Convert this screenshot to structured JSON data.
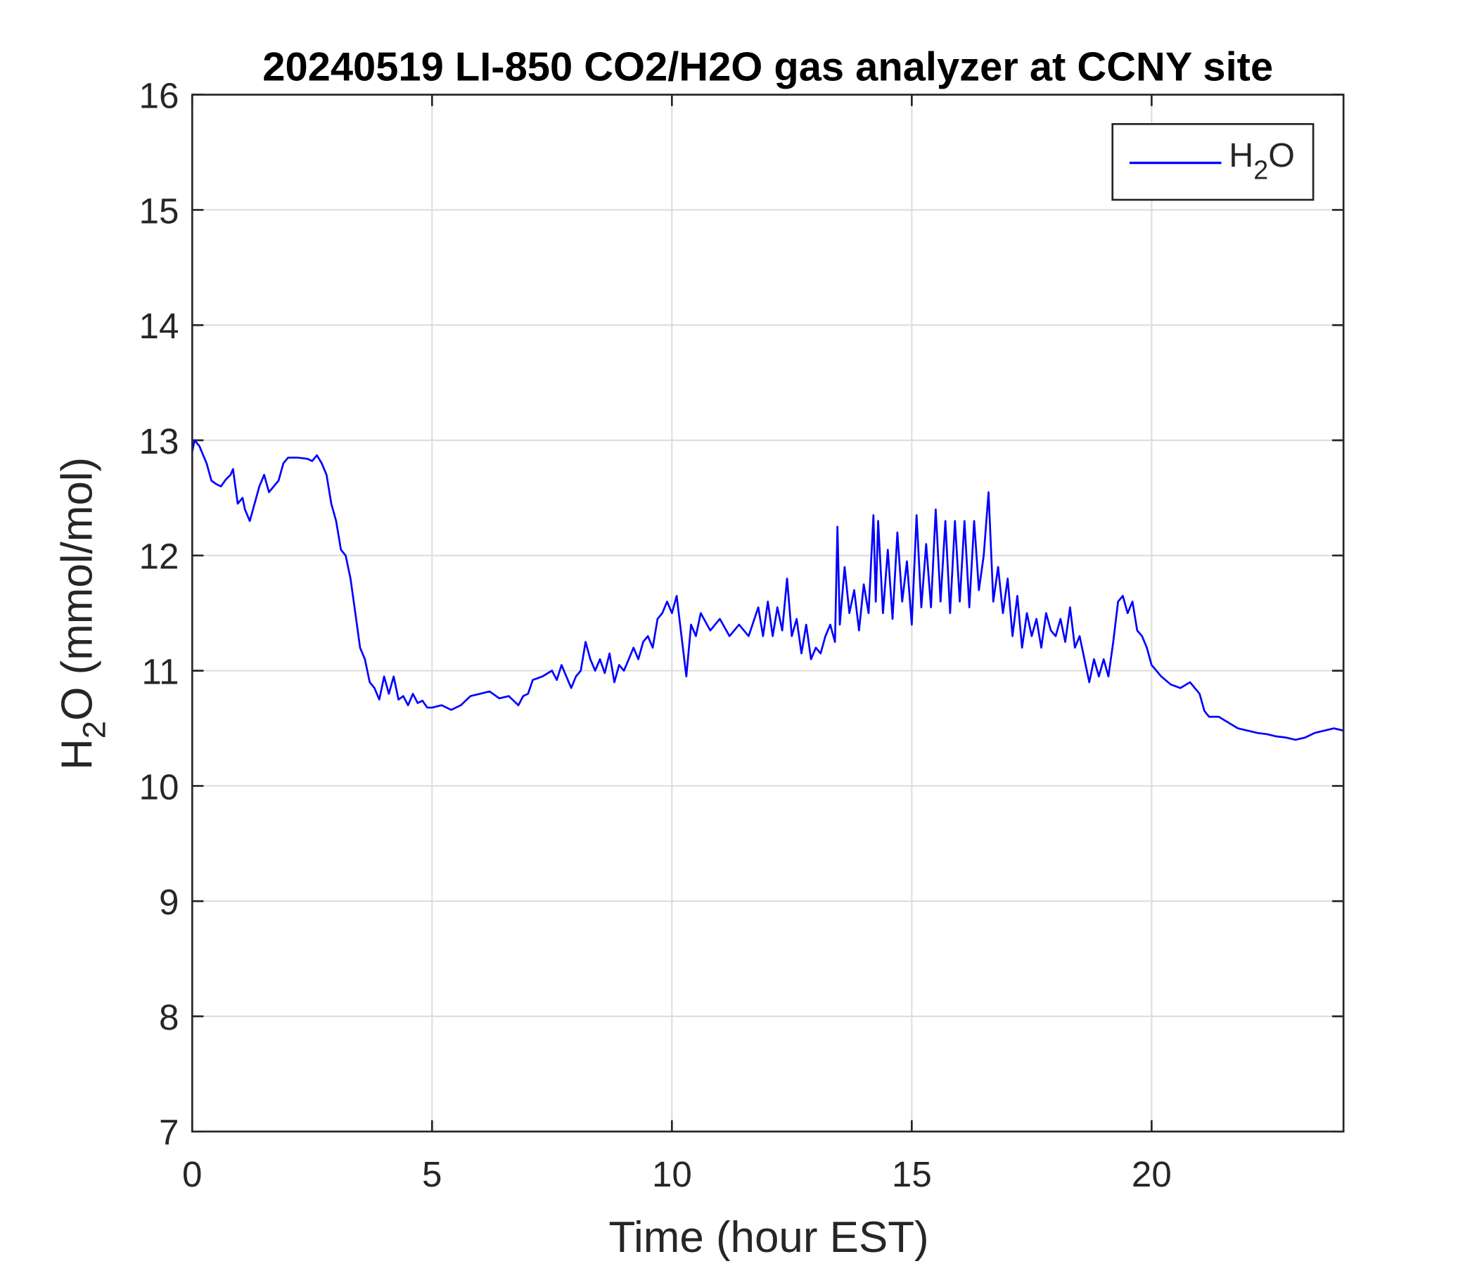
{
  "chart_data": {
    "type": "line",
    "title": "20240519 LI-850 CO2/H2O gas analyzer at CCNY site",
    "xlabel": "Time (hour EST)",
    "ylabel_parts": [
      "H",
      "2",
      "O (mmol/mol)"
    ],
    "xlim": [
      0,
      24
    ],
    "ylim": [
      7,
      16
    ],
    "xticks": [
      0,
      5,
      10,
      15,
      20
    ],
    "yticks": [
      7,
      8,
      9,
      10,
      11,
      12,
      13,
      14,
      15,
      16
    ],
    "grid": true,
    "legend": {
      "placement": "top-right",
      "entries": [
        {
          "parts": [
            "H",
            "2",
            "O"
          ],
          "color": "#0000FF"
        }
      ]
    },
    "series": [
      {
        "name": "H2O",
        "color": "#0000FF",
        "x": [
          0,
          0.05,
          0.15,
          0.3,
          0.4,
          0.5,
          0.6,
          0.7,
          0.8,
          0.85,
          0.9,
          0.95,
          1.05,
          1.1,
          1.2,
          1.3,
          1.4,
          1.5,
          1.6,
          1.7,
          1.8,
          1.9,
          2.0,
          2.2,
          2.4,
          2.5,
          2.6,
          2.7,
          2.8,
          2.9,
          3.0,
          3.1,
          3.2,
          3.3,
          3.4,
          3.5,
          3.6,
          3.7,
          3.8,
          3.9,
          4.0,
          4.1,
          4.2,
          4.3,
          4.4,
          4.5,
          4.6,
          4.7,
          4.8,
          4.9,
          5.0,
          5.2,
          5.4,
          5.6,
          5.8,
          6.0,
          6.2,
          6.4,
          6.6,
          6.8,
          6.9,
          7.0,
          7.1,
          7.3,
          7.5,
          7.6,
          7.7,
          7.8,
          7.9,
          8.0,
          8.1,
          8.2,
          8.3,
          8.4,
          8.5,
          8.6,
          8.7,
          8.8,
          8.9,
          9.0,
          9.1,
          9.2,
          9.3,
          9.4,
          9.5,
          9.6,
          9.7,
          9.8,
          9.9,
          10.0,
          10.1,
          10.2,
          10.3,
          10.4,
          10.5,
          10.6,
          10.8,
          11.0,
          11.2,
          11.4,
          11.6,
          11.8,
          11.9,
          12.0,
          12.1,
          12.2,
          12.3,
          12.4,
          12.5,
          12.6,
          12.7,
          12.8,
          12.9,
          13.0,
          13.1,
          13.2,
          13.3,
          13.4,
          13.45,
          13.5,
          13.6,
          13.7,
          13.8,
          13.9,
          14.0,
          14.1,
          14.2,
          14.25,
          14.3,
          14.4,
          14.5,
          14.6,
          14.7,
          14.8,
          14.9,
          15.0,
          15.1,
          15.2,
          15.3,
          15.4,
          15.5,
          15.6,
          15.7,
          15.8,
          15.9,
          16.0,
          16.1,
          16.2,
          16.3,
          16.4,
          16.5,
          16.6,
          16.7,
          16.8,
          16.9,
          17.0,
          17.1,
          17.2,
          17.3,
          17.4,
          17.5,
          17.6,
          17.7,
          17.8,
          17.9,
          18.0,
          18.1,
          18.2,
          18.3,
          18.4,
          18.5,
          18.6,
          18.7,
          18.8,
          18.9,
          19.0,
          19.1,
          19.2,
          19.3,
          19.4,
          19.5,
          19.6,
          19.7,
          19.8,
          19.9,
          20.0,
          20.1,
          20.2,
          20.4,
          20.6,
          20.8,
          21.0,
          21.1,
          21.2,
          21.4,
          21.6,
          21.8,
          22.0,
          22.2,
          22.4,
          22.6,
          22.8,
          23.0,
          23.2,
          23.4,
          23.6,
          23.8,
          24.0
        ],
        "y": [
          12.9,
          13.0,
          12.95,
          12.8,
          12.65,
          12.62,
          12.6,
          12.66,
          12.7,
          12.75,
          12.6,
          12.45,
          12.5,
          12.4,
          12.3,
          12.45,
          12.6,
          12.7,
          12.55,
          12.6,
          12.65,
          12.8,
          12.85,
          12.85,
          12.84,
          12.82,
          12.87,
          12.8,
          12.7,
          12.45,
          12.3,
          12.05,
          12.0,
          11.8,
          11.5,
          11.2,
          11.1,
          10.9,
          10.85,
          10.75,
          10.95,
          10.8,
          10.95,
          10.75,
          10.78,
          10.7,
          10.8,
          10.72,
          10.74,
          10.68,
          10.68,
          10.7,
          10.66,
          10.7,
          10.78,
          10.8,
          10.82,
          10.76,
          10.78,
          10.7,
          10.78,
          10.8,
          10.92,
          10.95,
          11.0,
          10.92,
          11.05,
          10.95,
          10.85,
          10.95,
          11.0,
          11.25,
          11.1,
          11.0,
          11.1,
          10.98,
          11.15,
          10.9,
          11.05,
          11.0,
          11.1,
          11.2,
          11.1,
          11.25,
          11.3,
          11.2,
          11.45,
          11.5,
          11.6,
          11.5,
          11.65,
          11.3,
          10.95,
          11.4,
          11.3,
          11.5,
          11.35,
          11.45,
          11.3,
          11.4,
          11.3,
          11.55,
          11.3,
          11.6,
          11.3,
          11.55,
          11.35,
          11.8,
          11.3,
          11.45,
          11.15,
          11.4,
          11.1,
          11.2,
          11.15,
          11.3,
          11.4,
          11.25,
          12.25,
          11.4,
          11.9,
          11.5,
          11.7,
          11.35,
          11.75,
          11.5,
          12.35,
          11.6,
          12.3,
          11.5,
          12.05,
          11.45,
          12.2,
          11.6,
          11.95,
          11.4,
          12.35,
          11.55,
          12.1,
          11.55,
          12.4,
          11.6,
          12.3,
          11.5,
          12.3,
          11.6,
          12.3,
          11.55,
          12.3,
          11.7,
          12.0,
          12.55,
          11.6,
          11.9,
          11.5,
          11.8,
          11.3,
          11.65,
          11.2,
          11.5,
          11.3,
          11.45,
          11.2,
          11.5,
          11.35,
          11.3,
          11.45,
          11.25,
          11.55,
          11.2,
          11.3,
          11.1,
          10.9,
          11.1,
          10.95,
          11.1,
          10.95,
          11.25,
          11.6,
          11.65,
          11.5,
          11.6,
          11.35,
          11.3,
          11.2,
          11.05,
          11.0,
          10.95,
          10.88,
          10.85,
          10.9,
          10.8,
          10.65,
          10.6,
          10.6,
          10.55,
          10.5,
          10.48,
          10.46,
          10.45,
          10.43,
          10.42,
          10.4,
          10.42,
          10.46,
          10.48,
          10.5,
          10.48
        ]
      }
    ]
  }
}
